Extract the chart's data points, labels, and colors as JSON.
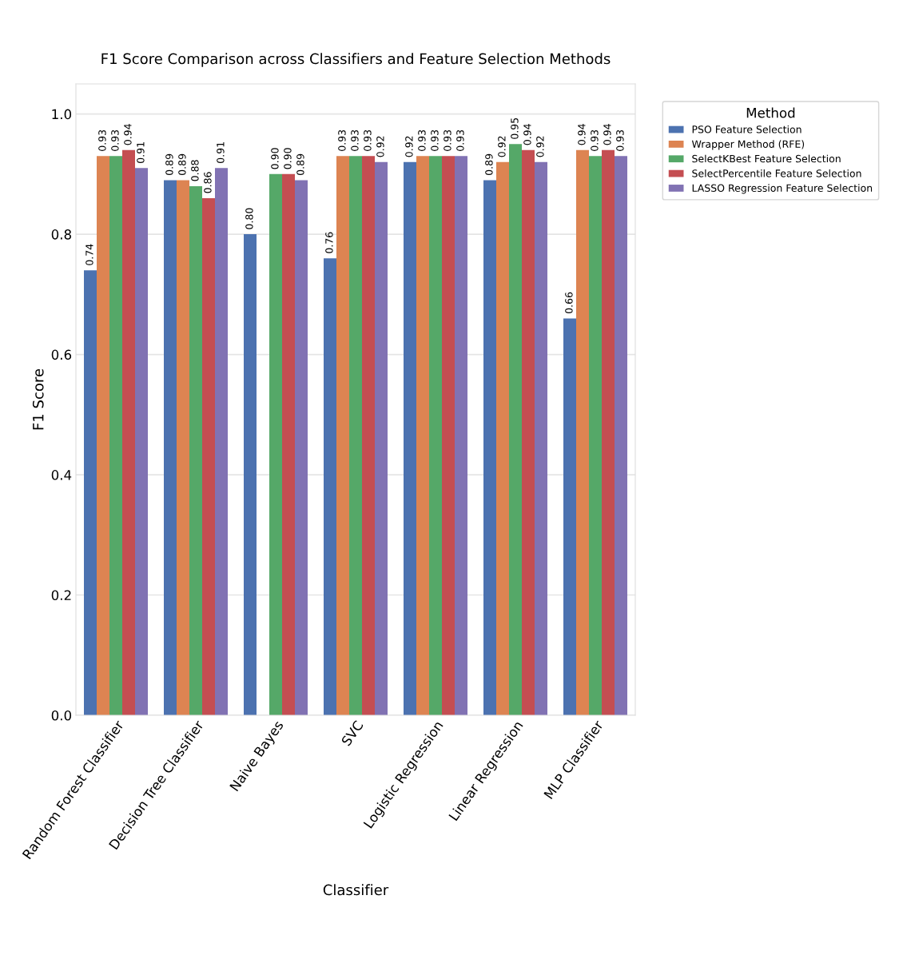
{
  "chart_data": {
    "type": "bar",
    "title": "F1 Score Comparison across Classifiers and Feature Selection Methods",
    "xlabel": "Classifier",
    "ylabel": "F1 Score",
    "legend_title": "Method",
    "categories": [
      "Random Forest Classifier",
      "Decision Tree Classifier",
      "Naive Bayes",
      "SVC",
      "Logistic Regression",
      "Linear Regression",
      "MLP Classifier"
    ],
    "series": [
      {
        "name": "PSO Feature Selection",
        "color": "#4c72b0",
        "values": [
          0.74,
          0.89,
          0.8,
          0.76,
          0.92,
          0.89,
          0.66
        ],
        "value_labels": [
          "0.74",
          "0.89",
          "0.80",
          "0.76",
          "0.92",
          "0.89",
          "0.66"
        ]
      },
      {
        "name": "Wrapper Method (RFE)",
        "color": "#dd8452",
        "values": [
          0.93,
          0.89,
          null,
          0.93,
          0.93,
          0.92,
          0.94
        ],
        "value_labels": [
          "0.93",
          "0.89",
          null,
          "0.93",
          "0.93",
          "0.92",
          "0.94"
        ]
      },
      {
        "name": "SelectKBest Feature Selection",
        "color": "#55a868",
        "values": [
          0.93,
          0.88,
          0.9,
          0.93,
          0.93,
          0.95,
          0.93
        ],
        "value_labels": [
          "0.93",
          "0.88",
          "0.90",
          "0.93",
          "0.93",
          "0.95",
          "0.93"
        ]
      },
      {
        "name": "SelectPercentile Feature Selection",
        "color": "#c44e52",
        "values": [
          0.94,
          0.86,
          0.9,
          0.93,
          0.93,
          0.94,
          0.94
        ],
        "value_labels": [
          "0.94",
          "0.86",
          "0.90",
          "0.93",
          "0.93",
          "0.94",
          "0.94"
        ]
      },
      {
        "name": "LASSO Regression Feature Selection",
        "color": "#8172b3",
        "values": [
          0.91,
          0.91,
          0.89,
          0.92,
          0.93,
          0.92,
          0.93
        ],
        "value_labels": [
          "0.91",
          "0.91",
          "0.89",
          "0.92",
          "0.93",
          "0.92",
          "0.93"
        ]
      }
    ],
    "ylim": [
      0,
      1.05
    ],
    "yticks": [
      {
        "value": 0,
        "label": "0.0"
      },
      0.2,
      0.4,
      0.6,
      0.8,
      {
        "value": 1,
        "label": "1.0"
      }
    ],
    "grid": "y",
    "legend": "top right"
  }
}
